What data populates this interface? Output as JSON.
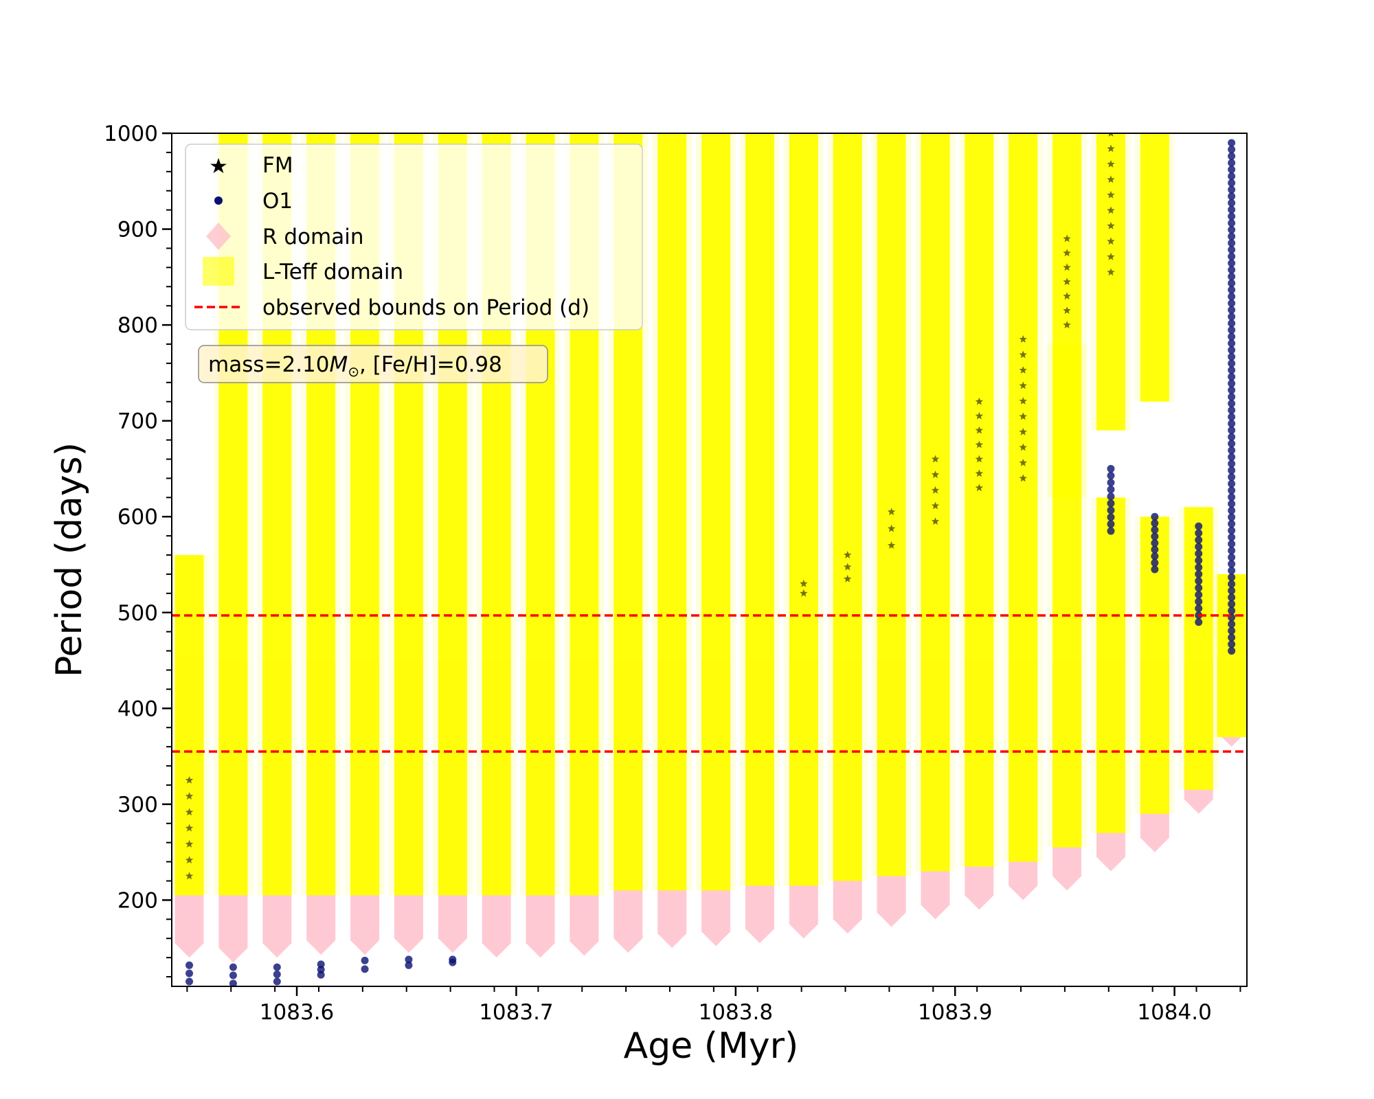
{
  "chart_data": {
    "type": "scatter",
    "xlabel": "Age (Myr)",
    "ylabel": "Period (days)",
    "xlim": [
      1083.543,
      1084.033
    ],
    "ylim": [
      110,
      1000
    ],
    "xticks": [
      1083.6,
      1083.7,
      1083.8,
      1083.9,
      1084.0
    ],
    "xtick_labels": [
      "1083.6",
      "1083.7",
      "1083.8",
      "1083.9",
      "1084.0"
    ],
    "yticks": [
      200,
      300,
      400,
      500,
      600,
      700,
      800,
      900,
      1000
    ],
    "ytick_labels": [
      "200",
      "300",
      "400",
      "500",
      "600",
      "700",
      "800",
      "900",
      "1000"
    ],
    "legend_position": "upper-left",
    "legend": [
      {
        "label": "FM",
        "marker": "star",
        "color": "#000000"
      },
      {
        "label": "O1",
        "marker": "circle",
        "color": "#0a1172"
      },
      {
        "label": "R domain",
        "marker": "diamond",
        "color": "#ffc0cb"
      },
      {
        "label": "L-Teff domain",
        "marker": "square",
        "color": "#ffff00"
      },
      {
        "label": "observed bounds on Period (d)",
        "marker": "dashed-line",
        "color": "#ff0000"
      }
    ],
    "annotation": {
      "prefix": "mass=2.10",
      "symbol": "M",
      "subscript": "⊙",
      "suffix": ", [Fe/H]=0.98"
    },
    "observed_bounds": [
      355,
      497
    ],
    "colors": {
      "fm": "#000000",
      "o1": "#0a1172",
      "r_domain": "#ffc0cb",
      "lteff_domain": "#ffff00",
      "bounds": "#ff0000"
    },
    "columns": [
      {
        "age": 1083.551,
        "lteff": [
          [
            205,
            560
          ]
        ],
        "r_top": 455,
        "r_bottom": 140,
        "fm": [
          225,
          325
        ],
        "o1": [
          115,
          132
        ]
      },
      {
        "age": 1083.571,
        "lteff": [
          [
            205,
            1000
          ]
        ],
        "r_top": 450,
        "r_bottom": 135,
        "fm": [],
        "o1": [
          113,
          130
        ]
      },
      {
        "age": 1083.591,
        "lteff": [
          [
            205,
            1000
          ]
        ],
        "r_top": 450,
        "r_bottom": 140,
        "fm": [],
        "o1": [
          115,
          130
        ]
      },
      {
        "age": 1083.611,
        "lteff": [
          [
            205,
            1000
          ]
        ],
        "r_top": 450,
        "r_bottom": 143,
        "fm": [],
        "o1": [
          122,
          133
        ]
      },
      {
        "age": 1083.631,
        "lteff": [
          [
            205,
            1000
          ]
        ],
        "r_top": 450,
        "r_bottom": 143,
        "fm": [],
        "o1": [
          128,
          137
        ]
      },
      {
        "age": 1083.651,
        "lteff": [
          [
            205,
            1000
          ]
        ],
        "r_top": 450,
        "r_bottom": 145,
        "fm": [],
        "o1": [
          132,
          138
        ]
      },
      {
        "age": 1083.671,
        "lteff": [
          [
            205,
            1000
          ]
        ],
        "r_top": 450,
        "r_bottom": 145,
        "fm": [],
        "o1": [
          135,
          138
        ]
      },
      {
        "age": 1083.691,
        "lteff": [
          [
            205,
            1000
          ]
        ],
        "r_top": 450,
        "r_bottom": 140,
        "fm": [],
        "o1": []
      },
      {
        "age": 1083.711,
        "lteff": [
          [
            205,
            1000
          ]
        ],
        "r_top": 450,
        "r_bottom": 140,
        "fm": [],
        "o1": []
      },
      {
        "age": 1083.731,
        "lteff": [
          [
            205,
            1000
          ]
        ],
        "r_top": 450,
        "r_bottom": 142,
        "fm": [],
        "o1": []
      },
      {
        "age": 1083.751,
        "lteff": [
          [
            210,
            1000
          ]
        ],
        "r_top": 450,
        "r_bottom": 145,
        "fm": [],
        "o1": []
      },
      {
        "age": 1083.771,
        "lteff": [
          [
            210,
            1000
          ]
        ],
        "r_top": 450,
        "r_bottom": 150,
        "fm": [],
        "o1": []
      },
      {
        "age": 1083.791,
        "lteff": [
          [
            210,
            1000
          ]
        ],
        "r_top": 450,
        "r_bottom": 152,
        "fm": [],
        "o1": []
      },
      {
        "age": 1083.811,
        "lteff": [
          [
            215,
            1000
          ]
        ],
        "r_top": 450,
        "r_bottom": 155,
        "fm": [],
        "o1": []
      },
      {
        "age": 1083.831,
        "lteff": [
          [
            215,
            1000
          ]
        ],
        "r_top": 450,
        "r_bottom": 160,
        "fm": [
          520,
          530
        ],
        "o1": []
      },
      {
        "age": 1083.851,
        "lteff": [
          [
            220,
            1000
          ]
        ],
        "r_top": 450,
        "r_bottom": 165,
        "fm": [
          535,
          560
        ],
        "o1": []
      },
      {
        "age": 1083.871,
        "lteff": [
          [
            225,
            1000
          ]
        ],
        "r_top": 450,
        "r_bottom": 172,
        "fm": [
          570,
          605
        ],
        "o1": []
      },
      {
        "age": 1083.891,
        "lteff": [
          [
            230,
            1000
          ]
        ],
        "r_top": 450,
        "r_bottom": 180,
        "fm": [
          595,
          660
        ],
        "o1": []
      },
      {
        "age": 1083.911,
        "lteff": [
          [
            235,
            1000
          ]
        ],
        "r_top": 450,
        "r_bottom": 190,
        "fm": [
          630,
          720
        ],
        "o1": []
      },
      {
        "age": 1083.931,
        "lteff": [
          [
            240,
            1000
          ]
        ],
        "r_top": 450,
        "r_bottom": 200,
        "fm": [
          640,
          785
        ],
        "o1": []
      },
      {
        "age": 1083.951,
        "lteff": [
          [
            255,
            780
          ],
          [
            620,
            1000
          ]
        ],
        "r_top": 450,
        "r_bottom": 210,
        "fm": [
          800,
          890
        ],
        "o1": []
      },
      {
        "age": 1083.971,
        "lteff": [
          [
            270,
            620
          ],
          [
            690,
            1000
          ]
        ],
        "r_top": 450,
        "r_bottom": 230,
        "fm": [
          855,
          1000
        ],
        "o1": [
          585,
          650
        ]
      },
      {
        "age": 1083.991,
        "lteff": [
          [
            290,
            600
          ],
          [
            720,
            1000
          ]
        ],
        "r_top": 450,
        "r_bottom": 250,
        "fm": [],
        "o1": [
          545,
          600
        ]
      },
      {
        "age": 1084.011,
        "lteff": [
          [
            315,
            610
          ]
        ],
        "r_top": 450,
        "r_bottom": 290,
        "fm": [],
        "o1": [
          490,
          590
        ]
      },
      {
        "age": 1084.026,
        "lteff": [
          [
            370,
            540
          ]
        ],
        "r_top": 450,
        "r_bottom": 360,
        "fm": [],
        "o1": [
          460,
          990
        ]
      }
    ]
  }
}
